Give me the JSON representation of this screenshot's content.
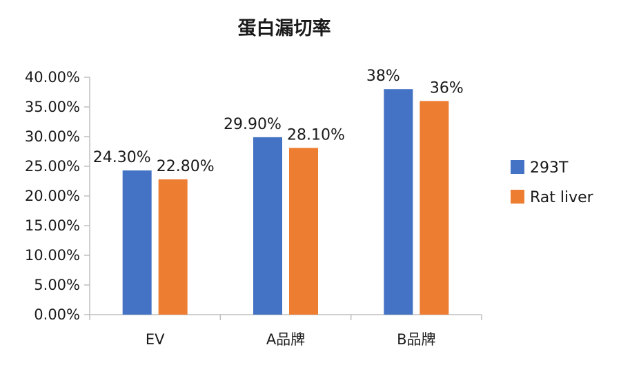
{
  "chart_data": {
    "type": "bar",
    "title": "蛋白漏切率",
    "categories": [
      "EV",
      "A品牌",
      "B品牌"
    ],
    "series": [
      {
        "name": "293T",
        "values": [
          24.3,
          29.9,
          38.0
        ],
        "labels": [
          "24.30%",
          "29.90%",
          "38%"
        ],
        "color": "#4472C4"
      },
      {
        "name": "Rat liver",
        "values": [
          22.8,
          28.1,
          36.0
        ],
        "labels": [
          "22.80%",
          "28.10%",
          "36%"
        ],
        "color": "#ED7D31"
      }
    ],
    "ylim": [
      0,
      40
    ],
    "yticks": [
      0,
      5,
      10,
      15,
      20,
      25,
      30,
      35,
      40
    ],
    "ytick_labels": [
      "0.00%",
      "5.00%",
      "10.00%",
      "15.00%",
      "20.00%",
      "25.00%",
      "30.00%",
      "35.00%",
      "40.00%"
    ],
    "grid": false,
    "legend_position": "right"
  }
}
